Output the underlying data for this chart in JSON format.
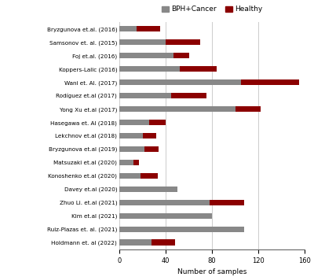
{
  "labels": [
    "Bryzgunova et.al. (2016)",
    "Samsonov et. al. (2015)",
    "Foj et.al. (2016)",
    "Koppers-Lalic (2016)",
    "Wani et. Al. (2017)",
    "Rodíguez et.al (2017)",
    "Yong Xu et.al (2017)",
    "Hasegawa et. Al (2018)",
    "Lekchnov et.al (2018)",
    "Bryzgunova et.al (2019)",
    "Matsuzaki et.al (2020)",
    "Konoshenko et.al (2020)",
    "Davey et.al (2020)",
    "Zhuo Li. et.al (2021)",
    "Kim et.al (2021)",
    "Ruiz-Plazas et. al. (2021)",
    "Holdmann et. al (2022)"
  ],
  "bph_cancer": [
    15,
    40,
    47,
    52,
    105,
    45,
    100,
    26,
    20,
    22,
    12,
    18,
    50,
    78,
    80,
    108,
    28
  ],
  "healthy": [
    20,
    30,
    13,
    32,
    50,
    30,
    22,
    14,
    12,
    12,
    5,
    15,
    0,
    30,
    0,
    0,
    20
  ],
  "bph_color": "#888888",
  "healthy_color": "#8b0000",
  "background_color": "#ffffff",
  "xlabel": "Number of samples",
  "xlim": [
    0,
    160
  ],
  "xticks": [
    0,
    40,
    80,
    120,
    160
  ],
  "legend_labels": [
    "BPH+Cancer",
    "Healthy"
  ],
  "grid_color": "#cccccc",
  "bar_height": 0.45,
  "label_fontsize": 5.2,
  "xlabel_fontsize": 6.5,
  "tick_fontsize": 6.0,
  "legend_fontsize": 6.5
}
